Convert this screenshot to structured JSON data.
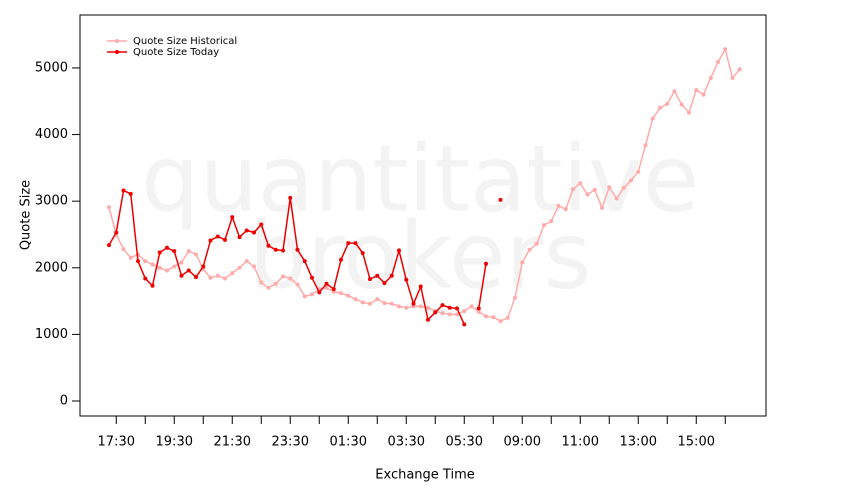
{
  "chart_data": {
    "type": "line",
    "xlabel": "Exchange Time",
    "ylabel": "Quote Size",
    "watermark": [
      "quantitative",
      "brokers"
    ],
    "categories": [
      null,
      "17:30",
      null,
      null,
      null,
      null,
      null,
      null,
      null,
      "19:30",
      null,
      null,
      null,
      null,
      null,
      null,
      null,
      "21:30",
      null,
      null,
      null,
      null,
      null,
      null,
      null,
      "23:30",
      null,
      null,
      null,
      null,
      null,
      null,
      null,
      "01:30",
      null,
      null,
      null,
      null,
      null,
      null,
      null,
      "03:30",
      null,
      null,
      null,
      null,
      null,
      null,
      null,
      "05:30",
      null,
      null,
      null,
      null,
      null,
      null,
      null,
      "09:00",
      null,
      null,
      null,
      null,
      null,
      null,
      null,
      "11:00",
      null,
      null,
      null,
      null,
      null,
      null,
      null,
      "13:00",
      null,
      null,
      null,
      null,
      null,
      null,
      null,
      "15:00",
      null,
      null,
      null,
      null,
      null,
      null
    ],
    "series": [
      {
        "name": "Quote Size Historical",
        "color": "#ffaaaa",
        "values": [
          2910,
          2500,
          2280,
          2150,
          2200,
          2100,
          2050,
          2000,
          1960,
          2020,
          2080,
          2250,
          2200,
          1980,
          1850,
          1880,
          1840,
          1920,
          2000,
          2100,
          2020,
          1780,
          1700,
          1760,
          1870,
          1840,
          1750,
          1570,
          1600,
          1680,
          1700,
          1640,
          1620,
          1580,
          1530,
          1480,
          1460,
          1530,
          1470,
          1460,
          1420,
          1400,
          1420,
          1420,
          1400,
          1350,
          1320,
          1300,
          1300,
          1350,
          1420,
          1340,
          1270,
          1260,
          1200,
          1250,
          1550,
          2080,
          2270,
          2360,
          2640,
          2700,
          2930,
          2880,
          3180,
          3270,
          3100,
          3170,
          2900,
          3210,
          3040,
          3200,
          3310,
          3440,
          3840,
          4240,
          4400,
          4460,
          4650,
          4450,
          4330,
          4670,
          4600,
          4850,
          5090,
          5280,
          4850,
          4980
        ]
      },
      {
        "name": "Quote Size Today",
        "color": "#ee0000",
        "values": [
          2340,
          2530,
          3160,
          3110,
          2100,
          1840,
          1730,
          2230,
          2300,
          2250,
          1880,
          1960,
          1860,
          2020,
          2410,
          2470,
          2420,
          2760,
          2460,
          2560,
          2530,
          2650,
          2330,
          2270,
          2260,
          3050,
          2270,
          2100,
          1850,
          1630,
          1760,
          1680,
          2120,
          2370,
          2370,
          2220,
          1830,
          1880,
          1770,
          1880,
          2260,
          1820,
          1460,
          1720,
          1220,
          1330,
          1440,
          1400,
          1390,
          1150,
          null,
          1390,
          2060,
          null,
          3020,
          null,
          null,
          null,
          null,
          null,
          null,
          null,
          null,
          null,
          null,
          null,
          null,
          null,
          null,
          null,
          null,
          null,
          null,
          null,
          null,
          null,
          null,
          null,
          null,
          null,
          null,
          null,
          null,
          null,
          null,
          null,
          null,
          null
        ]
      }
    ],
    "ylim": [
      -225,
      5795
    ],
    "yticks": [
      0,
      1000,
      2000,
      3000,
      4000,
      5000
    ],
    "legend": "upper left",
    "grid": false
  }
}
